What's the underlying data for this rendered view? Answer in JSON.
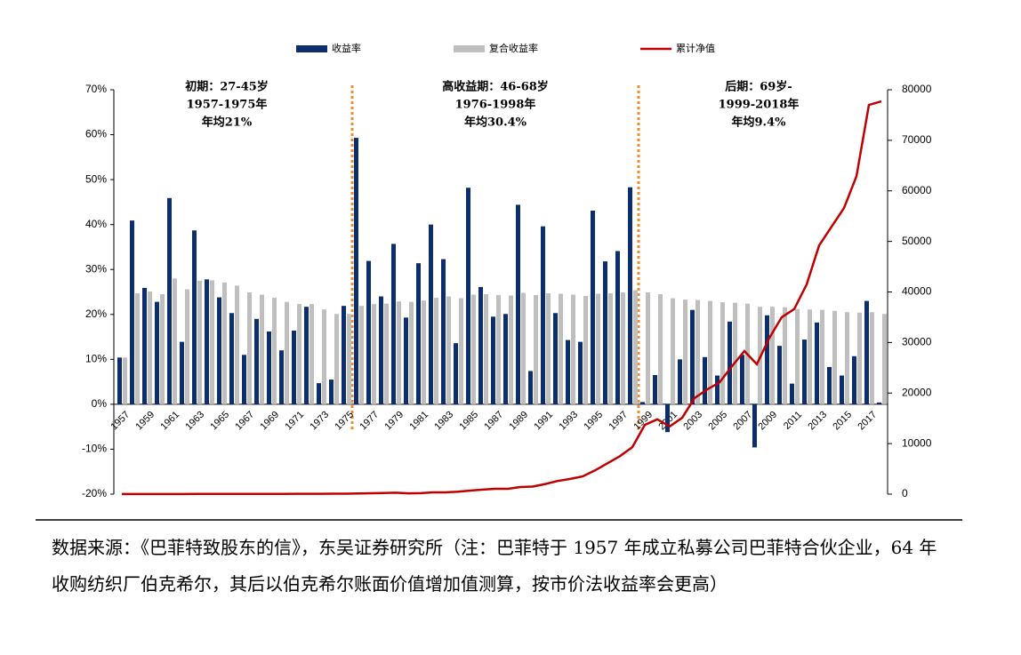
{
  "chart_data": {
    "type": "bar-line",
    "categories": [
      "1957",
      null,
      "1959",
      null,
      "1961",
      null,
      "1963",
      null,
      "1965",
      null,
      "1967",
      null,
      "1969",
      null,
      "1971",
      null,
      "1973",
      null,
      "1975",
      null,
      "1977",
      null,
      "1979",
      null,
      "1981",
      null,
      "1983",
      null,
      "1985",
      null,
      "1987",
      null,
      "1989",
      null,
      "1991",
      null,
      "1993",
      null,
      "1995",
      null,
      "1997",
      null,
      "1999",
      null,
      "2001",
      null,
      "2003",
      null,
      "2005",
      null,
      "2007",
      null,
      "2009",
      null,
      "2011",
      null,
      "2013",
      null,
      "2015",
      null,
      "2017",
      null
    ],
    "series": [
      {
        "name": "收益率",
        "color": "#0d2e6e",
        "type": "bar",
        "values": [
          10.4,
          40.9,
          25.9,
          22.8,
          45.9,
          13.9,
          38.7,
          27.8,
          23.8,
          20.3,
          11.0,
          19.0,
          16.2,
          12.0,
          16.4,
          21.7,
          4.7,
          5.5,
          21.9,
          59.3,
          31.9,
          24.0,
          35.7,
          19.3,
          31.4,
          40.0,
          32.3,
          13.6,
          48.2,
          26.1,
          19.5,
          20.1,
          44.4,
          7.4,
          39.6,
          20.3,
          14.3,
          13.9,
          43.1,
          31.8,
          34.1,
          48.3,
          0.5,
          6.5,
          -6.2,
          10.0,
          21.0,
          10.5,
          6.4,
          18.4,
          11.0,
          -9.6,
          19.8,
          13.0,
          4.6,
          14.4,
          18.2,
          8.3,
          6.4,
          10.7,
          23.0,
          0.4
        ]
      },
      {
        "name": "复合收益率",
        "color": "#bfbfbf",
        "type": "bar",
        "values": [
          10.4,
          24.7,
          25.1,
          24.5,
          28.0,
          25.6,
          27.5,
          27.6,
          27.1,
          26.4,
          24.9,
          24.4,
          23.7,
          22.8,
          22.3,
          22.3,
          21.1,
          20.1,
          20.1,
          21.9,
          22.3,
          22.4,
          22.9,
          22.8,
          23.1,
          23.7,
          24.0,
          23.6,
          24.4,
          24.5,
          24.3,
          24.2,
          24.8,
          24.3,
          24.7,
          24.6,
          24.4,
          24.1,
          24.6,
          24.7,
          24.9,
          25.4,
          24.9,
          24.5,
          23.6,
          23.3,
          23.2,
          23.0,
          22.7,
          22.6,
          22.4,
          21.7,
          21.7,
          21.6,
          21.2,
          21.1,
          21.0,
          20.8,
          20.5,
          20.4,
          20.5,
          20.1
        ]
      },
      {
        "name": "累计净值",
        "color": "#c00000",
        "type": "line",
        "axis": "y2",
        "values": [
          10,
          12,
          14,
          16,
          20,
          22,
          27,
          32,
          37,
          42,
          45,
          50,
          55,
          60,
          66,
          76,
          78,
          80,
          95,
          140,
          180,
          220,
          290,
          150,
          200,
          350,
          350,
          500,
          700,
          900,
          1050,
          1050,
          1400,
          1500,
          2000,
          2600,
          3000,
          3500,
          4700,
          6100,
          7500,
          9300,
          13700,
          14800,
          13400,
          15100,
          19000,
          20700,
          22100,
          25300,
          28300,
          25700,
          30900,
          35000,
          36600,
          41500,
          49200,
          52900,
          56600,
          62900,
          77000,
          77700
        ]
      }
    ],
    "ylim": [
      -20,
      70
    ],
    "yticks": [
      {
        "value": -20,
        "label": "-20%"
      },
      {
        "value": -10,
        "label": "-10%"
      },
      {
        "value": 0,
        "label": "0%"
      },
      {
        "value": 10,
        "label": "10%"
      },
      {
        "value": 20,
        "label": "20%"
      },
      {
        "value": 30,
        "label": "30%"
      },
      {
        "value": 40,
        "label": "40%"
      },
      {
        "value": 50,
        "label": "50%"
      },
      {
        "value": 60,
        "label": "60%"
      },
      {
        "value": 70,
        "label": "70%"
      }
    ],
    "y2lim": [
      0,
      80000
    ],
    "y2ticks": [
      0,
      10000,
      20000,
      30000,
      40000,
      50000,
      60000,
      70000,
      80000
    ],
    "annotations": [
      [
        "初期：27-45岁",
        "1957-1975年",
        "年均21%"
      ],
      [
        "高收益期：46-68岁",
        "1976-1998年",
        "年均30.4%"
      ],
      [
        "后期：69岁-",
        "1999-2018年",
        "年均9.4%"
      ]
    ]
  },
  "note": "数据来源：《巴菲特致股东的信》，东吴证券研究所（注：巴菲特于 1957 年成立私募公司巴菲特合伙企业，64 年收购纺织厂伯克希尔，其后以伯克希尔账面价值增加值测算，按市价法收益率会更高）"
}
